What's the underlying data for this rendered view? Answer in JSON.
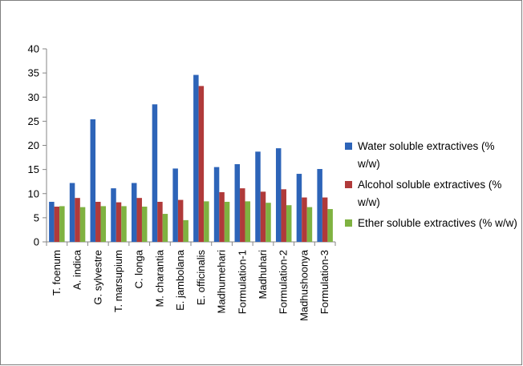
{
  "chart_data": {
    "type": "bar",
    "categories": [
      "T. foenum",
      "A. indica",
      "G. sylvestre",
      "T. marsupium",
      "C. longa",
      "M. charantia",
      "E. jambolana",
      "E. officinalis",
      "Madhumehari",
      "Formulation-1",
      "Madhuhari",
      "Formulation-2",
      "Madhushoonya",
      "Formulation-3"
    ],
    "series": [
      {
        "name": "Water soluble extractives  (% w/w)",
        "color": "#2d64b8",
        "values": [
          8.3,
          12.2,
          25.4,
          11.1,
          12.2,
          28.5,
          15.2,
          34.6,
          15.5,
          16.1,
          18.7,
          19.4,
          14.1,
          15.1
        ]
      },
      {
        "name": "Alcohol soluble extractives (% w/w)",
        "color": "#b03a3a",
        "values": [
          7.3,
          9.1,
          8.3,
          8.2,
          9.1,
          8.3,
          8.7,
          32.3,
          10.3,
          11.1,
          10.4,
          10.9,
          9.2,
          9.2
        ]
      },
      {
        "name": "Ether soluble extractives (% w/w)",
        "color": "#7fb241",
        "values": [
          7.4,
          7.2,
          7.4,
          7.4,
          7.3,
          5.8,
          4.5,
          8.4,
          8.3,
          8.4,
          8.1,
          7.6,
          7.2,
          6.8
        ]
      }
    ],
    "yticks": [
      0,
      5,
      10,
      15,
      20,
      25,
      30,
      35,
      40
    ],
    "ylim": [
      0,
      40
    ],
    "grid": false,
    "legend_position": "right"
  }
}
